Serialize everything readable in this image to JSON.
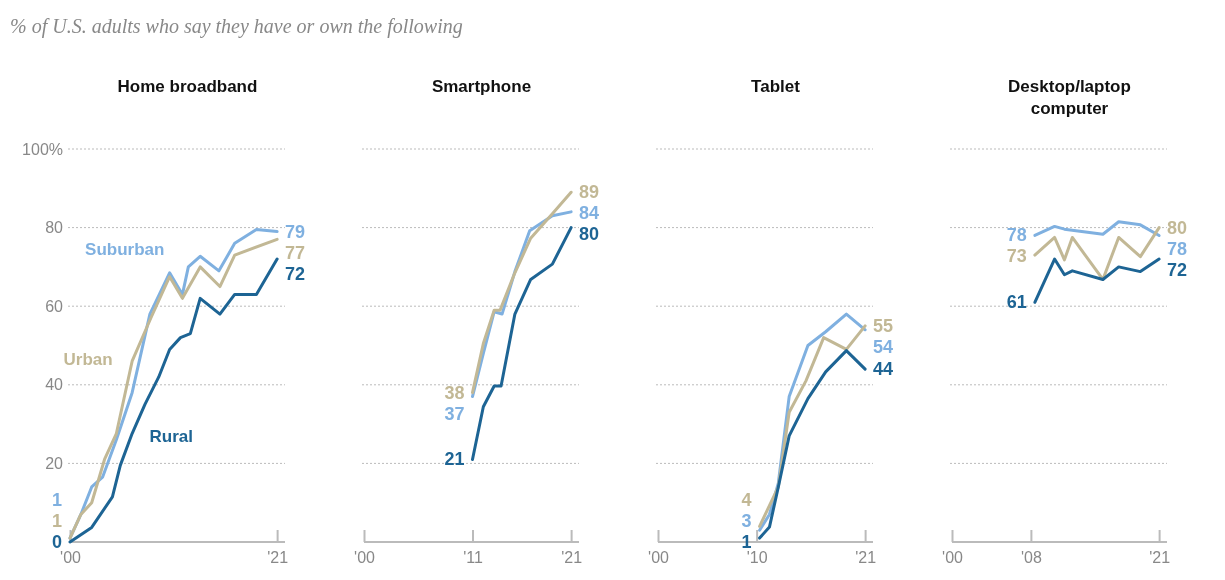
{
  "chart_data": [
    {
      "type": "line",
      "subtitle": "% of U.S. adults who say they have or own the following",
      "title": "Home broadband",
      "xlim": [
        2000,
        2021.8
      ],
      "xticks": [
        {
          "value": 2000,
          "label": "'00"
        },
        {
          "value": 2021,
          "label": "'21"
        }
      ],
      "ylim": [
        0,
        100
      ],
      "yticks": [
        20,
        40,
        60,
        80,
        {
          "value": 100,
          "label": "100%"
        }
      ],
      "grid": "y",
      "series": [
        {
          "name": "Suburban",
          "color": "#7fb0e0",
          "x": [
            2000,
            2001.1,
            2002.2,
            2003.3,
            2004.7,
            2006.3,
            2008.1,
            2010.1,
            2011.4,
            2012,
            2013.2,
            2015.1,
            2016.7,
            2018.9,
            2021
          ],
          "values": [
            1,
            7,
            14,
            16.5,
            26,
            38,
            58,
            68.5,
            63,
            70,
            72.7,
            69,
            76,
            79.5,
            79
          ],
          "value_labels": [
            "1",
            null,
            null,
            null,
            null,
            null,
            null,
            null,
            null,
            null,
            null,
            null,
            null,
            null,
            "79"
          ]
        },
        {
          "name": "Urban",
          "color": "#c2b895",
          "x": [
            2000,
            2001.1,
            2002.2,
            2003.5,
            2004.7,
            2006.3,
            2008.2,
            2010.1,
            2011.4,
            2013.2,
            2015.2,
            2016.7,
            2021
          ],
          "values": [
            1,
            7,
            10,
            21,
            27.6,
            46,
            57,
            67.5,
            62,
            70,
            65,
            73,
            77
          ],
          "value_labels": [
            "1",
            null,
            null,
            null,
            null,
            null,
            null,
            null,
            null,
            null,
            null,
            null,
            "77"
          ]
        },
        {
          "name": "Rural",
          "color": "#1d6494",
          "x": [
            2000,
            2002.2,
            2004.3,
            2005.1,
            2006.3,
            2007.6,
            2009,
            2010.1,
            2011.2,
            2012.2,
            2013.2,
            2015.2,
            2016.7,
            2018.9,
            2021
          ],
          "values": [
            0,
            3.7,
            11.5,
            19.5,
            27.6,
            35,
            42,
            49,
            52,
            53,
            62,
            58,
            63,
            63,
            72
          ],
          "value_labels": [
            "0",
            null,
            null,
            null,
            null,
            null,
            null,
            null,
            null,
            null,
            null,
            null,
            null,
            null,
            "72"
          ]
        }
      ]
    },
    {
      "type": "line",
      "title": "Smartphone",
      "xlim": [
        2000,
        2021.8
      ],
      "xticks": [
        {
          "value": 2000,
          "label": "'00"
        },
        {
          "value": 2011,
          "label": "'11"
        },
        {
          "value": 2021,
          "label": "'21"
        }
      ],
      "ylim": [
        0,
        100
      ],
      "yticks": [
        20,
        40,
        60,
        80,
        100
      ],
      "tick_labels": "x",
      "grid": "y",
      "series": [
        {
          "color": "#7fb0e0",
          "x": [
            2011,
            2012.1,
            2013.2,
            2014,
            2015.3,
            2016.8,
            2019.1,
            2021
          ],
          "values": [
            37,
            48,
            58.6,
            58,
            68.8,
            79.2,
            83,
            84
          ],
          "value_labels": [
            "37",
            null,
            null,
            null,
            null,
            null,
            null,
            "84"
          ]
        },
        {
          "color": "#c2b895",
          "x": [
            2011,
            2012.1,
            2013.2,
            2013.8,
            2015.3,
            2016.9,
            2019.1,
            2021
          ],
          "values": [
            38,
            50.5,
            59,
            59,
            68.5,
            77.3,
            83.5,
            89
          ],
          "value_labels": [
            "38",
            null,
            null,
            null,
            null,
            null,
            null,
            "89"
          ]
        },
        {
          "color": "#1d6494",
          "x": [
            2011,
            2012.1,
            2013.2,
            2013.9,
            2015.3,
            2016.9,
            2019.1,
            2021
          ],
          "values": [
            21,
            34.4,
            39.7,
            39.7,
            58,
            66.8,
            70.7,
            80
          ],
          "value_labels": [
            "21",
            null,
            null,
            null,
            null,
            null,
            null,
            "80"
          ]
        }
      ]
    },
    {
      "type": "line",
      "title": "Tablet",
      "xlim": [
        2000,
        2021.8
      ],
      "xticks": [
        {
          "value": 2000,
          "label": "'00"
        },
        {
          "value": 2010,
          "label": "'10"
        },
        {
          "value": 2021,
          "label": "'21"
        }
      ],
      "ylim": [
        0,
        100
      ],
      "yticks": [
        20,
        40,
        60,
        80,
        100
      ],
      "tick_labels": "x",
      "grid": "y",
      "series": [
        {
          "color": "#7fb0e0",
          "x": [
            2010.3,
            2011.3,
            2012.2,
            2013.3,
            2015.2,
            2017,
            2019.1,
            2021
          ],
          "values": [
            3,
            7,
            15,
            37,
            50,
            53.5,
            58,
            54
          ],
          "value_labels": [
            "3",
            null,
            null,
            null,
            null,
            null,
            null,
            "54"
          ]
        },
        {
          "color": "#c2b895",
          "x": [
            2010.3,
            2012.2,
            2013.3,
            2015,
            2016.8,
            2019.1,
            2021
          ],
          "values": [
            4,
            14,
            33,
            41,
            52,
            49,
            55
          ],
          "value_labels": [
            "4",
            null,
            null,
            null,
            null,
            null,
            "55"
          ]
        },
        {
          "color": "#1d6494",
          "x": [
            2010.3,
            2011.3,
            2012.2,
            2013.3,
            2015.2,
            2017,
            2019.1,
            2021
          ],
          "values": [
            1,
            3.8,
            14,
            27,
            36.5,
            43.3,
            48.7,
            44
          ],
          "value_labels": [
            "1",
            null,
            null,
            null,
            null,
            null,
            null,
            "44"
          ]
        }
      ]
    },
    {
      "type": "line",
      "title": "Desktop/laptop computer",
      "xlim": [
        2000,
        2021.8
      ],
      "xticks": [
        {
          "value": 2000,
          "label": "'00"
        },
        {
          "value": 2008,
          "label": "'08"
        },
        {
          "value": 2021,
          "label": "'21"
        }
      ],
      "ylim": [
        0,
        100
      ],
      "yticks": [
        20,
        40,
        60,
        80,
        100
      ],
      "tick_labels": "x",
      "grid": "y",
      "series": [
        {
          "color": "#7fb0e0",
          "x": [
            2008.4,
            2010.4,
            2011.4,
            2015.3,
            2016.9,
            2019.1,
            2021
          ],
          "values": [
            78,
            80.3,
            79.6,
            78.3,
            81.5,
            80.7,
            78
          ],
          "value_labels": [
            "78",
            null,
            null,
            null,
            null,
            null,
            "78"
          ]
        },
        {
          "color": "#c2b895",
          "x": [
            2008.4,
            2010.4,
            2011.4,
            2012.2,
            2015.3,
            2016.9,
            2019.1,
            2021
          ],
          "values": [
            73,
            77.5,
            71.8,
            77.5,
            66.8,
            77.5,
            72.6,
            80
          ],
          "value_labels": [
            "73",
            null,
            null,
            null,
            null,
            null,
            null,
            "80"
          ]
        },
        {
          "color": "#1d6494",
          "x": [
            2008.4,
            2010.4,
            2011.4,
            2012.2,
            2015.3,
            2016.9,
            2019.1,
            2021
          ],
          "values": [
            61,
            72,
            68,
            69,
            66.8,
            70,
            68.8,
            72
          ],
          "value_labels": [
            "61",
            null,
            null,
            null,
            null,
            null,
            null,
            "72"
          ]
        }
      ]
    }
  ]
}
